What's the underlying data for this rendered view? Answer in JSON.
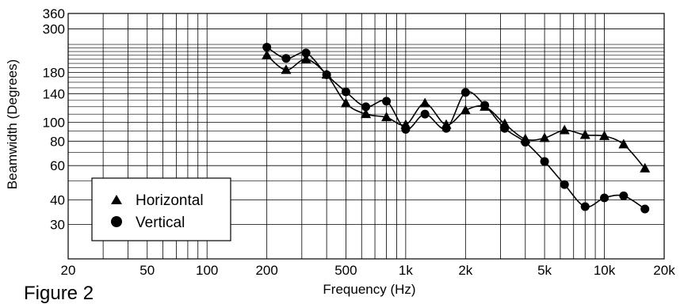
{
  "caption": "Figure 2",
  "chart_data": {
    "type": "line",
    "title": "",
    "xlabel": "Frequency (Hz)",
    "ylabel": "Beamwidth (Degrees)",
    "x_scale": "log",
    "y_scale": "log",
    "xlim": [
      20,
      20000
    ],
    "ylim": [
      20,
      360
    ],
    "grid": true,
    "legend_position": "bottom-left",
    "x_ticks": [
      {
        "value": 20,
        "label": "20"
      },
      {
        "value": 50,
        "label": "50"
      },
      {
        "value": 100,
        "label": "100"
      },
      {
        "value": 200,
        "label": "200"
      },
      {
        "value": 500,
        "label": "500"
      },
      {
        "value": 1000,
        "label": "1k"
      },
      {
        "value": 2000,
        "label": "2k"
      },
      {
        "value": 5000,
        "label": "5k"
      },
      {
        "value": 10000,
        "label": "10k"
      },
      {
        "value": 20000,
        "label": "20k"
      }
    ],
    "y_ticks": [
      {
        "value": 30,
        "label": "30"
      },
      {
        "value": 40,
        "label": "40"
      },
      {
        "value": 60,
        "label": "60"
      },
      {
        "value": 80,
        "label": "80"
      },
      {
        "value": 100,
        "label": "100"
      },
      {
        "value": 140,
        "label": "140"
      },
      {
        "value": 180,
        "label": "180"
      },
      {
        "value": 300,
        "label": "300"
      },
      {
        "value": 360,
        "label": "360"
      }
    ],
    "series": [
      {
        "name": "Horizontal",
        "marker": "triangle",
        "x": [
          200,
          250,
          315,
          400,
          500,
          630,
          800,
          1000,
          1250,
          1600,
          2000,
          2500,
          3150,
          4000,
          5000,
          6300,
          8000,
          10000,
          12500,
          16000
        ],
        "y": [
          220,
          185,
          210,
          175,
          125,
          110,
          106,
          97,
          125,
          97,
          115,
          120,
          98,
          82,
          83,
          91,
          86,
          85,
          77,
          58
        ]
      },
      {
        "name": "Vertical",
        "marker": "circle",
        "x": [
          200,
          250,
          315,
          400,
          500,
          630,
          800,
          1000,
          1250,
          1600,
          2000,
          2500,
          3150,
          4000,
          5000,
          6300,
          8000,
          10000,
          12500,
          16000
        ],
        "y": [
          242,
          212,
          226,
          175,
          143,
          120,
          128,
          92,
          110,
          93,
          142,
          122,
          93,
          79,
          63,
          48,
          37,
          41,
          42,
          36
        ]
      }
    ]
  }
}
